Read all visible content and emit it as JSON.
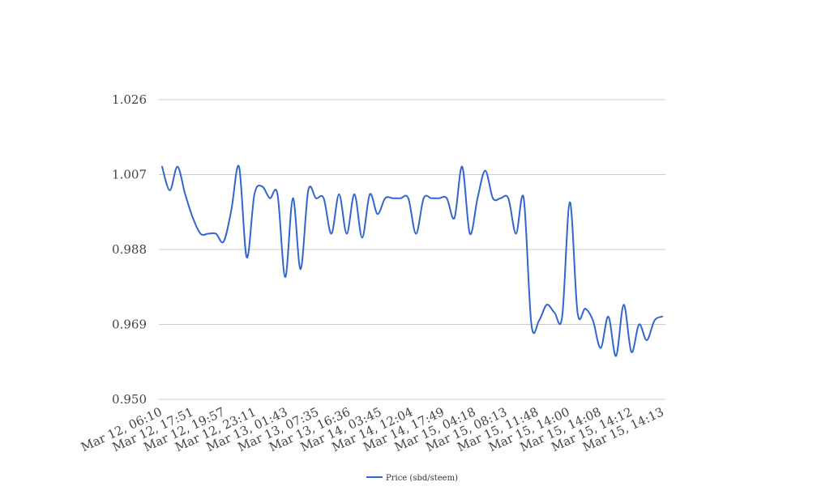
{
  "chart_data": {
    "type": "line",
    "title": "",
    "xlabel": "",
    "ylabel": "",
    "ylim": [
      0.95,
      1.026
    ],
    "y_ticks": [
      "0.950",
      "0.969",
      "0.988",
      "1.007",
      "1.026"
    ],
    "y_tick_values": [
      0.95,
      0.969,
      0.988,
      1.007,
      1.026
    ],
    "x_tick_labels": [
      "Mar 12, 06:10",
      "Mar 12, 17:51",
      "Mar 12, 19:57",
      "Mar 12, 23:11",
      "Mar 13, 01:43",
      "Mar 13, 07:35",
      "Mar 13, 16:36",
      "Mar 14, 03:45",
      "Mar 14, 12:04",
      "Mar 14, 17:49",
      "Mar 15, 04:18",
      "Mar 15, 08:13",
      "Mar 15, 11:48",
      "Mar 15, 14:00",
      "Mar 15, 14:08",
      "Mar 15, 14:12",
      "Mar 15, 14:13"
    ],
    "grid": true,
    "legend": "bottom-center",
    "colors": {
      "series": "#3366cc",
      "grid": "#cccccc"
    },
    "series": [
      {
        "name": "Price (sbd/steem)",
        "values": [
          1.009,
          1.003,
          1.009,
          1.002,
          0.996,
          0.992,
          0.992,
          0.992,
          0.99,
          0.998,
          1.009,
          0.986,
          1.002,
          1.004,
          1.001,
          1.002,
          0.981,
          1.001,
          0.983,
          1.003,
          1.001,
          1.001,
          0.992,
          1.002,
          0.992,
          1.002,
          0.991,
          1.002,
          0.997,
          1.001,
          1.001,
          1.001,
          1.001,
          0.992,
          1.001,
          1.001,
          1.001,
          1.001,
          0.996,
          1.009,
          0.992,
          1.001,
          1.008,
          1.001,
          1.001,
          1.001,
          0.992,
          1.001,
          0.969,
          0.97,
          0.974,
          0.972,
          0.971,
          1.0,
          0.972,
          0.973,
          0.97,
          0.963,
          0.971,
          0.961,
          0.974,
          0.962,
          0.969,
          0.965,
          0.97,
          0.971
        ]
      }
    ]
  }
}
